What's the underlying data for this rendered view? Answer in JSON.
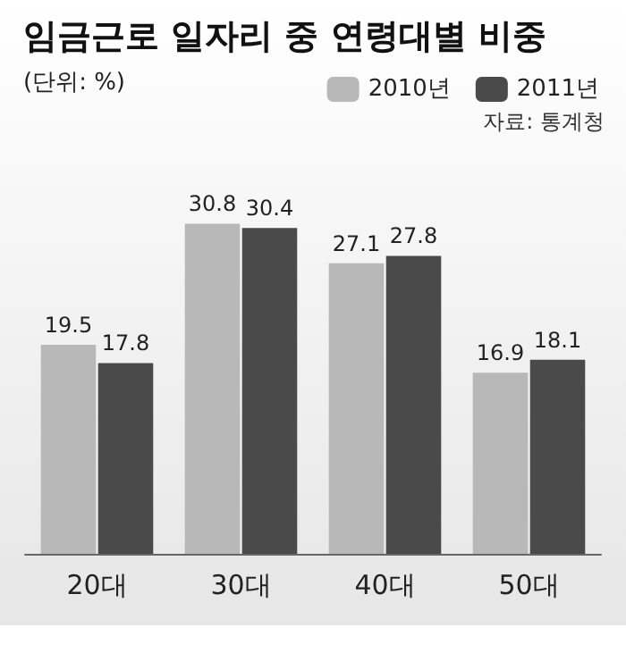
{
  "chart_data": {
    "type": "bar",
    "title": "임금근로 일자리 중 연령대별 비중",
    "subtitle": "(단위: %)",
    "annotations": [
      "자료: 통계청"
    ],
    "categories": [
      "20대",
      "30대",
      "40대",
      "50대"
    ],
    "series": [
      {
        "name": "2010년",
        "color": "#b8b8b8",
        "values": [
          19.5,
          30.8,
          27.1,
          16.9
        ]
      },
      {
        "name": "2011년",
        "color": "#4a4a4a",
        "values": [
          17.8,
          30.4,
          27.8,
          18.1
        ]
      }
    ],
    "data_labels": true,
    "legend": "top right"
  }
}
